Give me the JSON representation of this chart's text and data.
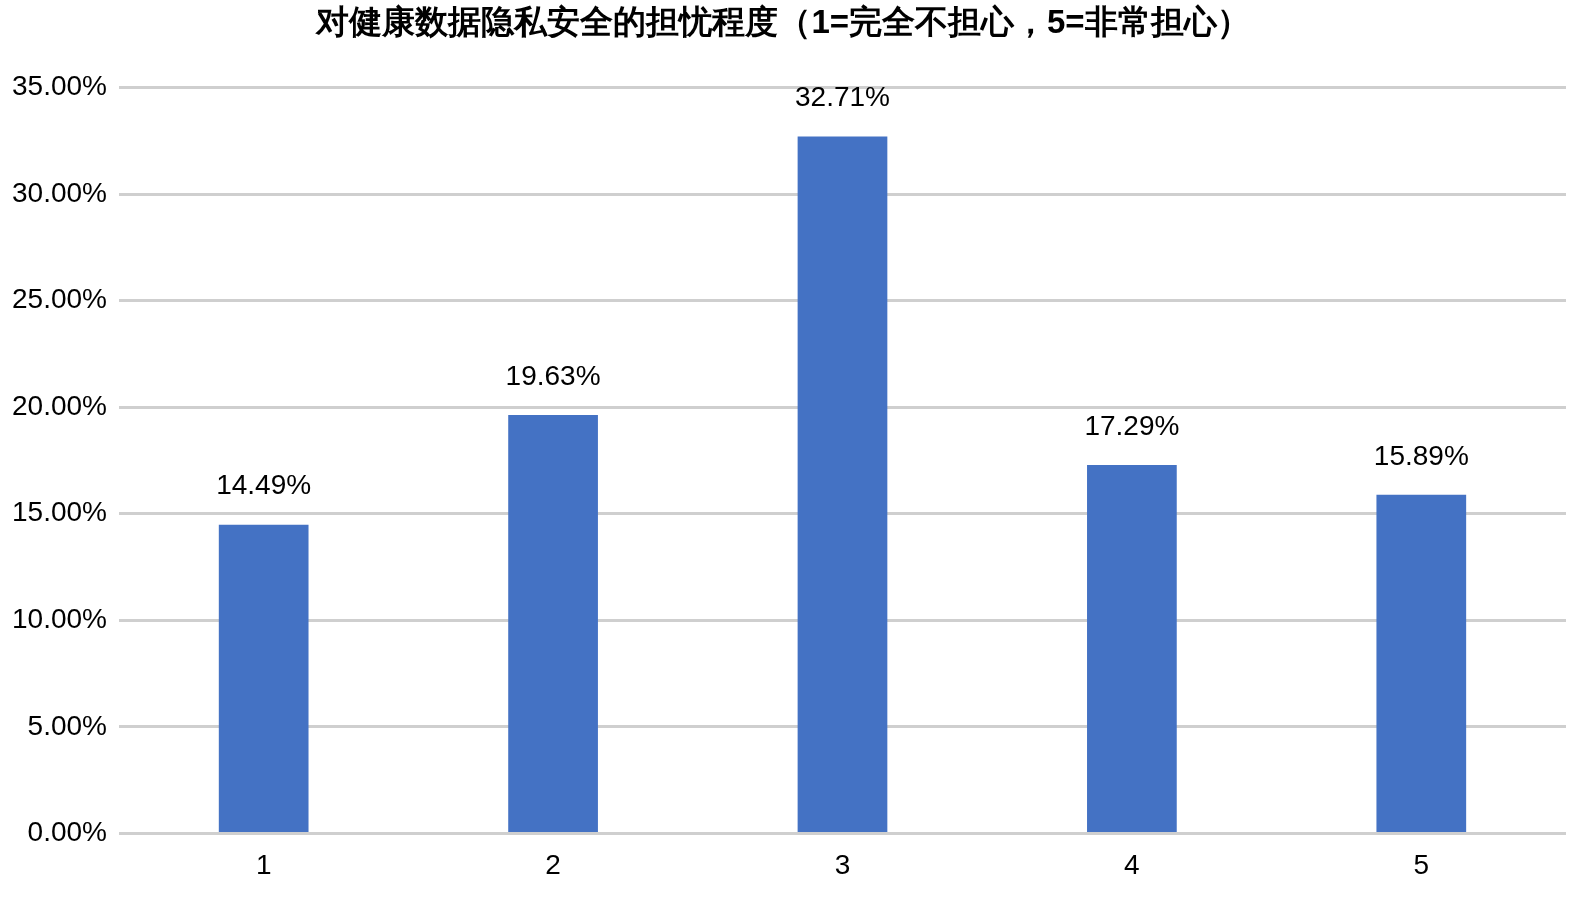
{
  "chart_data": {
    "type": "bar",
    "title": "对健康数据隐私安全的担忧程度（1=完全不担心，5=非常担心）",
    "categories": [
      "1",
      "2",
      "3",
      "4",
      "5"
    ],
    "values": [
      14.49,
      19.63,
      32.71,
      17.29,
      15.89
    ],
    "value_labels": [
      "14.49%",
      "19.63%",
      "32.71%",
      "17.29%",
      "15.89%"
    ],
    "color": "#4472c4",
    "ylim": [
      0,
      35
    ],
    "yticks": [
      {
        "value": 0,
        "label": "0.00%"
      },
      {
        "value": 5,
        "label": "5.00%"
      },
      {
        "value": 10,
        "label": "10.00%"
      },
      {
        "value": 15,
        "label": "15.00%"
      },
      {
        "value": 20,
        "label": "20.00%"
      },
      {
        "value": 25,
        "label": "25.00%"
      },
      {
        "value": 30,
        "label": "30.00%"
      },
      {
        "value": 35,
        "label": "35.00%"
      }
    ],
    "grid": "y",
    "legend": false
  }
}
